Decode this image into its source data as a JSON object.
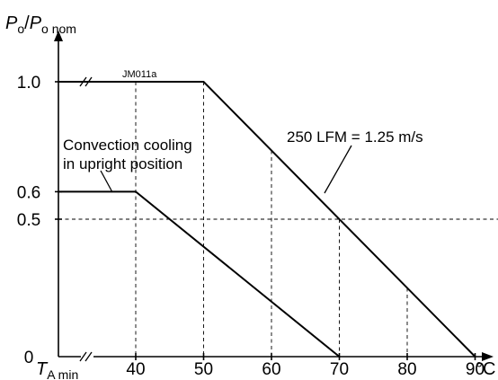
{
  "chart_data": {
    "type": "line",
    "ylabel": {
      "main": "P",
      "main_sub": "o",
      "sep": "/",
      "denom": "P",
      "denom_sub": "o nom"
    },
    "xlabel_min": {
      "main": "T",
      "sub": "A min"
    },
    "x_unit": "°C",
    "code": "JM011a",
    "xlim": [
      30,
      90
    ],
    "ylim": [
      0,
      1.0
    ],
    "x_ticks": [
      {
        "value": 40,
        "label": "40"
      },
      {
        "value": 50,
        "label": "50"
      },
      {
        "value": 60,
        "label": "60"
      },
      {
        "value": 70,
        "label": "70"
      },
      {
        "value": 80,
        "label": "80"
      },
      {
        "value": 90,
        "label": "90"
      }
    ],
    "y_ticks": [
      {
        "value": 0,
        "label": "0"
      },
      {
        "value": 0.5,
        "label": "0.5"
      },
      {
        "value": 0.6,
        "label": "0.6"
      },
      {
        "value": 1.0,
        "label": "1.0"
      }
    ],
    "series": [
      {
        "name": "250 LFM = 1.25 m/s",
        "points": [
          {
            "x": 30,
            "y": 1.0
          },
          {
            "x": 50,
            "y": 1.0
          },
          {
            "x": 90,
            "y": 0
          }
        ]
      },
      {
        "name": "Convection cooling in upright position",
        "name_lines": [
          "Convection cooling",
          "in upright position"
        ],
        "points": [
          {
            "x": 30,
            "y": 0.6
          },
          {
            "x": 40,
            "y": 0.6
          },
          {
            "x": 70,
            "y": 0
          }
        ]
      }
    ]
  }
}
